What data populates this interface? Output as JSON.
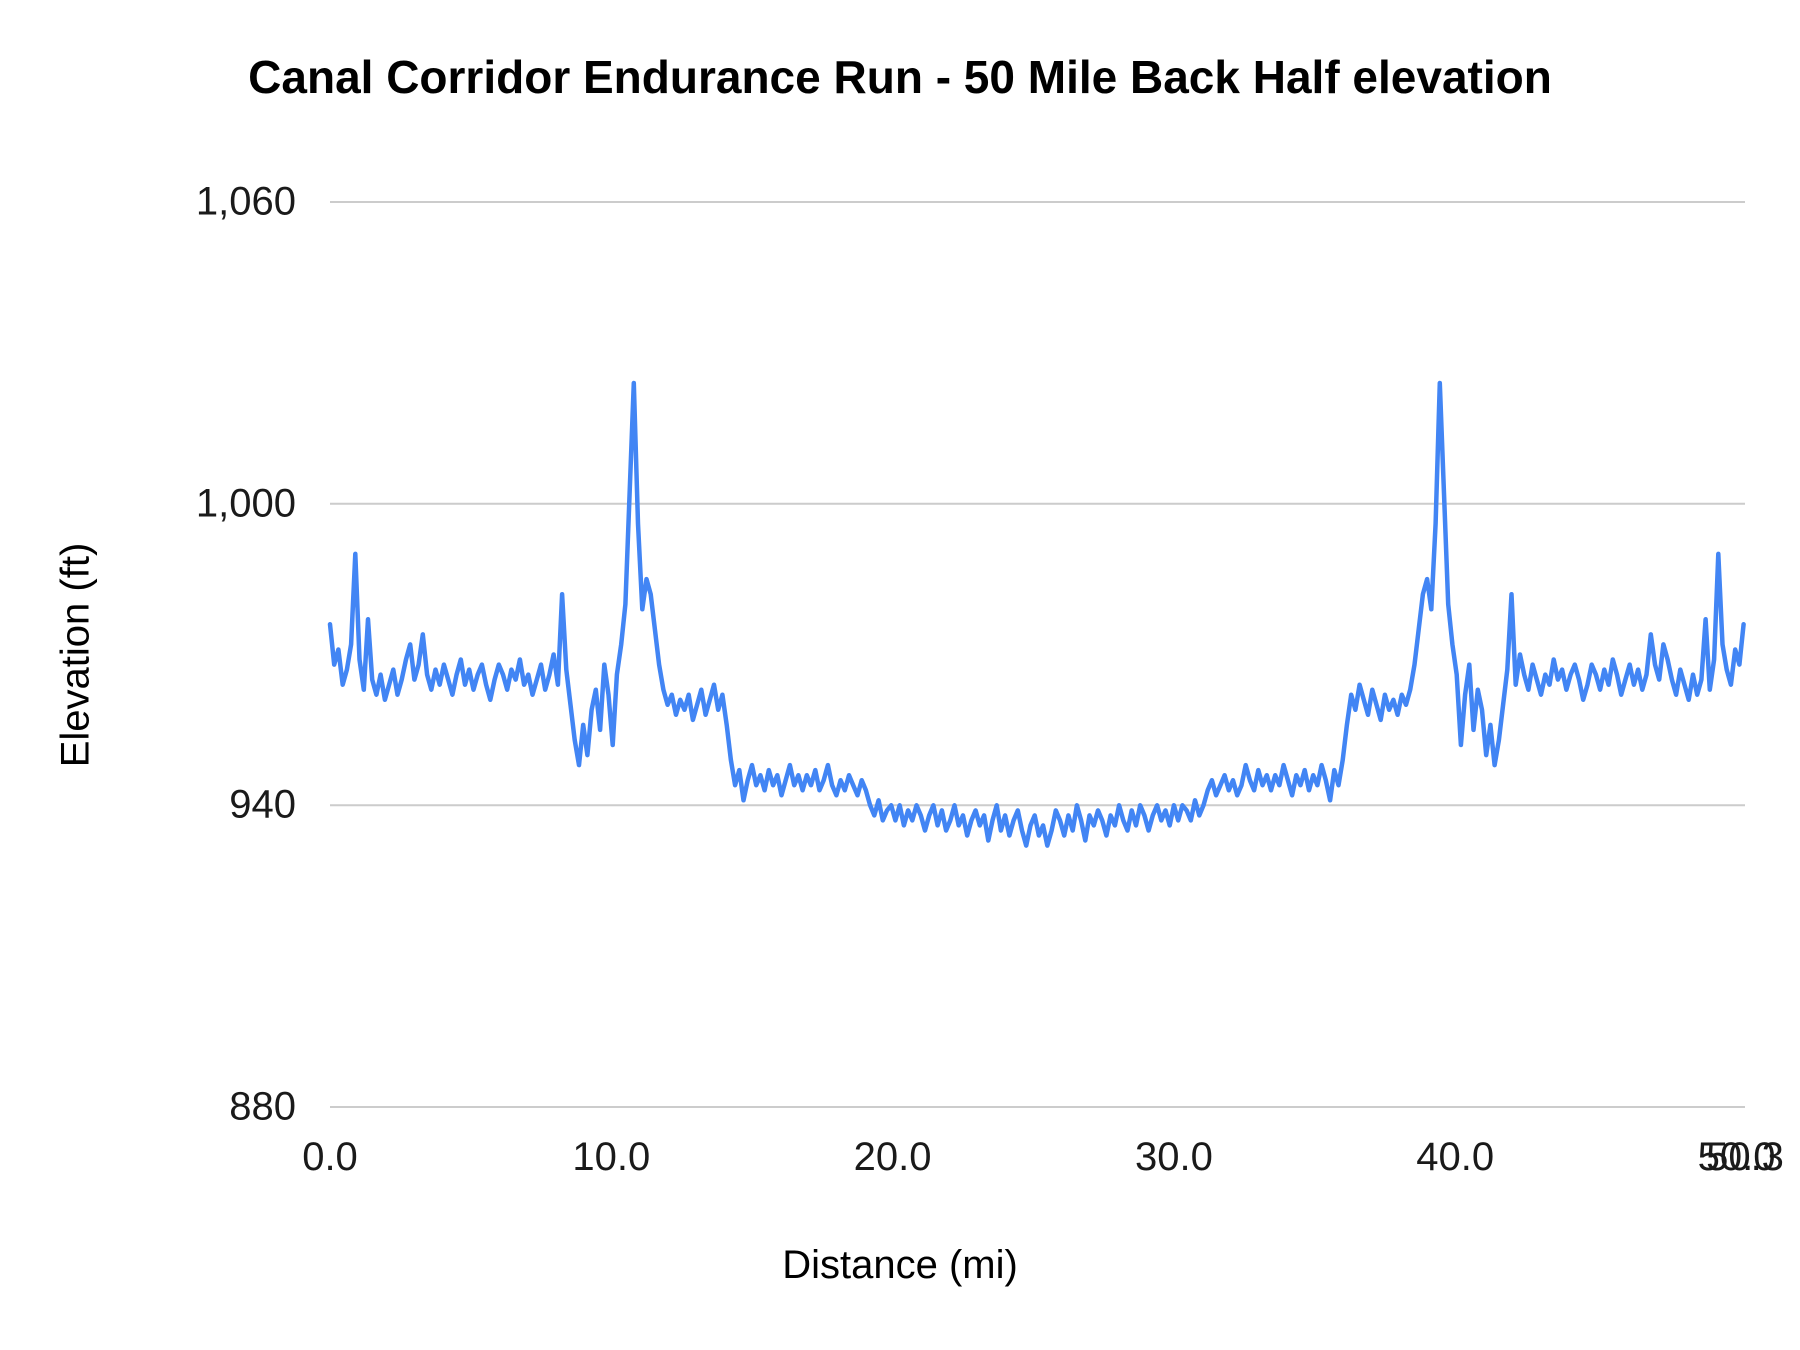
{
  "chart_data": {
    "type": "line",
    "title": "Canal Corridor Endurance Run - 50 Mile Back Half elevation",
    "xlabel": "Distance (mi)",
    "ylabel": "Elevation (ft)",
    "xlim": [
      0,
      50.3
    ],
    "ylim": [
      880,
      1060
    ],
    "x_ticks": [
      0,
      10,
      20,
      30,
      40,
      50,
      50.3
    ],
    "x_tick_labels": [
      "0.0",
      "10.0",
      "20.0",
      "30.0",
      "40.0",
      "50.0",
      "50.3"
    ],
    "y_ticks": [
      880,
      940,
      1000,
      1060
    ],
    "y_tick_labels": [
      "880",
      "940",
      "1,000",
      "1,060"
    ],
    "grid": true,
    "legend": "none",
    "line_color": "#4285f4",
    "grid_color": "#cccccc",
    "text_color": "#1a1a1a",
    "background_color": "#ffffff",
    "series_name": "elevation",
    "x_start": 0,
    "x_step": 0.15,
    "values": [
      976,
      968,
      971,
      964,
      967,
      972,
      990,
      969,
      963,
      977,
      965,
      962,
      966,
      961,
      964,
      967,
      962,
      965,
      969,
      972,
      965,
      968,
      974,
      966,
      963,
      967,
      964,
      968,
      965,
      962,
      966,
      969,
      964,
      967,
      963,
      966,
      968,
      964,
      961,
      965,
      968,
      966,
      963,
      967,
      965,
      969,
      964,
      966,
      962,
      965,
      968,
      963,
      966,
      970,
      964,
      982,
      967,
      960,
      953,
      948,
      956,
      950,
      959,
      963,
      955,
      968,
      962,
      952,
      966,
      972,
      980,
      1002,
      1024,
      996,
      979,
      985,
      982,
      975,
      968,
      963,
      960,
      962,
      958,
      961,
      959,
      962,
      957,
      960,
      963,
      958,
      961,
      964,
      959,
      962,
      956,
      949,
      944,
      947,
      941,
      945,
      948,
      944,
      946,
      943,
      947,
      944,
      946,
      942,
      945,
      948,
      944,
      946,
      943,
      946,
      944,
      947,
      943,
      945,
      948,
      944,
      942,
      945,
      943,
      946,
      944,
      942,
      945,
      943,
      940,
      938,
      941,
      937,
      939,
      940,
      937,
      940,
      936,
      939,
      937,
      940,
      938,
      935,
      938,
      940,
      936,
      939,
      935,
      937,
      940,
      936,
      938,
      934,
      937,
      939,
      936,
      938,
      933,
      937,
      940,
      935,
      938,
      934,
      937,
      939,
      935,
      932,
      936,
      938,
      934,
      936,
      932,
      935,
      939,
      937,
      934,
      938,
      935,
      940,
      937,
      933,
      938,
      936,
      939,
      937,
      934,
      938,
      936,
      940,
      937,
      935,
      939,
      936,
      940,
      938,
      935,
      938,
      940,
      937,
      939,
      936,
      940,
      937,
      940,
      939,
      937,
      941,
      938,
      940,
      943,
      945,
      942,
      944,
      946,
      943,
      945,
      942,
      944,
      948,
      945,
      943,
      947,
      944,
      946,
      943,
      946,
      944,
      948,
      945,
      942,
      946,
      944,
      947,
      943,
      946,
      944,
      948,
      945,
      941,
      947,
      944,
      949,
      956,
      962,
      959,
      964,
      961,
      958,
      963,
      960,
      957,
      962,
      959,
      961,
      958,
      962,
      960,
      963,
      968,
      975,
      982,
      985,
      979,
      996,
      1024,
      1002,
      980,
      972,
      966,
      952,
      962,
      968,
      955,
      963,
      959,
      950,
      956,
      948,
      953,
      960,
      967,
      982,
      964,
      970,
      966,
      963,
      968,
      965,
      962,
      966,
      964,
      969,
      965,
      967,
      963,
      966,
      968,
      965,
      961,
      964,
      968,
      966,
      963,
      967,
      964,
      969,
      966,
      962,
      965,
      968,
      964,
      967,
      963,
      966,
      974,
      968,
      965,
      972,
      969,
      965,
      962,
      967,
      964,
      961,
      966,
      962,
      965,
      977,
      963,
      969,
      990,
      972,
      967,
      964,
      971,
      968,
      976
    ]
  }
}
